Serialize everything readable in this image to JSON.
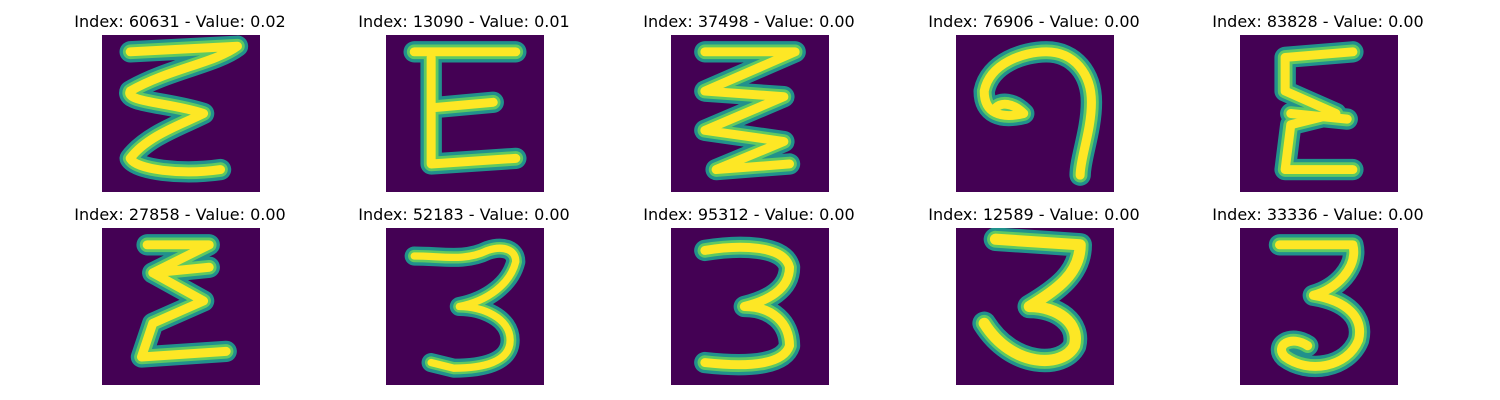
{
  "colors": {
    "background": "#440154",
    "stroke_edge": "#21918c",
    "stroke_mid": "#5ec962",
    "stroke_core": "#fde725"
  },
  "samples": [
    {
      "index_label": "Index: 60631 - Value: 0.02",
      "glyph": "E-zigzag"
    },
    {
      "index_label": "Index: 13090 - Value: 0.01",
      "glyph": "E"
    },
    {
      "index_label": "Index: 37498 - Value: 0.00",
      "glyph": "zigzag"
    },
    {
      "index_label": "Index: 76906 - Value: 0.00",
      "glyph": "loop-hook"
    },
    {
      "index_label": "Index: 83828 - Value: 0.00",
      "glyph": "E"
    },
    {
      "index_label": "Index: 27858 - Value: 0.00",
      "glyph": "E-zigzag"
    },
    {
      "index_label": "Index: 52183 - Value: 0.00",
      "glyph": "three"
    },
    {
      "index_label": "Index: 95312 - Value: 0.00",
      "glyph": "three"
    },
    {
      "index_label": "Index: 12589 - Value: 0.00",
      "glyph": "three"
    },
    {
      "index_label": "Index: 33336 - Value: 0.00",
      "glyph": "three"
    }
  ]
}
